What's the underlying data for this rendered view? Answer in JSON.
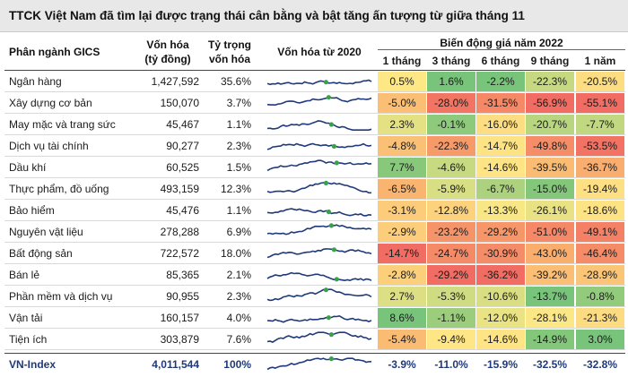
{
  "title": "TTCK Việt Nam đã tìm lại được trạng thái cân bằng và bật tăng ấn tượng từ giữa tháng 11",
  "headers": {
    "sector": "Phân ngành GICS",
    "cap_line1": "Vốn hóa",
    "cap_line2": "(tỷ đồng)",
    "weight_line1": "Tỷ trọng",
    "weight_line2": "vốn hóa",
    "spark": "Vốn hóa từ 2020",
    "group": "Biến động giá năm 2022",
    "periods": [
      "1 tháng",
      "3 tháng",
      "6 tháng",
      "9 tháng",
      "1 năm"
    ]
  },
  "colors": {
    "line": "#1f3a7a",
    "marker": "#3aa14a",
    "total_text": "#1f3a7a"
  },
  "chart_data": {
    "type": "table",
    "columns": [
      "Phân ngành GICS",
      "Vốn hóa (tỷ đồng)",
      "Tỷ trọng vốn hóa",
      "1 tháng",
      "3 tháng",
      "6 tháng",
      "9 tháng",
      "1 năm"
    ],
    "rows": [
      {
        "name": "Ngân hàng",
        "cap": "1,427,592",
        "weight": "35.6%",
        "changes": [
          "0.5%",
          "1.6%",
          "-2.2%",
          "-22.3%",
          "-20.5%"
        ],
        "values": [
          0.5,
          1.6,
          -2.2,
          -22.3,
          -20.5
        ]
      },
      {
        "name": "Xây dựng cơ bản",
        "cap": "150,070",
        "weight": "3.7%",
        "changes": [
          "-5.0%",
          "-28.0%",
          "-31.5%",
          "-56.9%",
          "-55.1%"
        ],
        "values": [
          -5.0,
          -28.0,
          -31.5,
          -56.9,
          -55.1
        ]
      },
      {
        "name": "May mặc và trang sức",
        "cap": "45,467",
        "weight": "1.1%",
        "changes": [
          "2.3%",
          "-0.1%",
          "-16.0%",
          "-20.7%",
          "-7.7%"
        ],
        "values": [
          2.3,
          -0.1,
          -16.0,
          -20.7,
          -7.7
        ]
      },
      {
        "name": "Dịch vụ tài chính",
        "cap": "90,277",
        "weight": "2.3%",
        "changes": [
          "-4.8%",
          "-22.3%",
          "-14.7%",
          "-49.8%",
          "-53.5%"
        ],
        "values": [
          -4.8,
          -22.3,
          -14.7,
          -49.8,
          -53.5
        ]
      },
      {
        "name": "Dầu khí",
        "cap": "60,525",
        "weight": "1.5%",
        "changes": [
          "7.7%",
          "-4.6%",
          "-14.6%",
          "-39.5%",
          "-36.7%"
        ],
        "values": [
          7.7,
          -4.6,
          -14.6,
          -39.5,
          -36.7
        ]
      },
      {
        "name": "Thực phẩm, đồ uống",
        "cap": "493,159",
        "weight": "12.3%",
        "changes": [
          "-6.5%",
          "-5.9%",
          "-6.7%",
          "-15.0%",
          "-19.4%"
        ],
        "values": [
          -6.5,
          -5.9,
          -6.7,
          -15.0,
          -19.4
        ]
      },
      {
        "name": "Bảo hiểm",
        "cap": "45,476",
        "weight": "1.1%",
        "changes": [
          "-3.1%",
          "-12.8%",
          "-13.3%",
          "-26.1%",
          "-18.6%"
        ],
        "values": [
          -3.1,
          -12.8,
          -13.3,
          -26.1,
          -18.6
        ]
      },
      {
        "name": "Nguyên vật liệu",
        "cap": "278,288",
        "weight": "6.9%",
        "changes": [
          "-2.9%",
          "-23.2%",
          "-29.2%",
          "-51.0%",
          "-49.1%"
        ],
        "values": [
          -2.9,
          -23.2,
          -29.2,
          -51.0,
          -49.1
        ]
      },
      {
        "name": "Bất động sản",
        "cap": "722,572",
        "weight": "18.0%",
        "changes": [
          "-14.7%",
          "-24.7%",
          "-30.9%",
          "-43.0%",
          "-46.4%"
        ],
        "values": [
          -14.7,
          -24.7,
          -30.9,
          -43.0,
          -46.4
        ]
      },
      {
        "name": "Bán lẻ",
        "cap": "85,365",
        "weight": "2.1%",
        "changes": [
          "-2.8%",
          "-29.2%",
          "-36.2%",
          "-39.2%",
          "-28.9%"
        ],
        "values": [
          -2.8,
          -29.2,
          -36.2,
          -39.2,
          -28.9
        ]
      },
      {
        "name": "Phần mềm và dịch vụ",
        "cap": "90,955",
        "weight": "2.3%",
        "changes": [
          "2.7%",
          "-5.3%",
          "-10.6%",
          "-13.7%",
          "-0.8%"
        ],
        "values": [
          2.7,
          -5.3,
          -10.6,
          -13.7,
          -0.8
        ]
      },
      {
        "name": "Vận tải",
        "cap": "160,157",
        "weight": "4.0%",
        "changes": [
          "8.6%",
          "-1.1%",
          "-12.0%",
          "-28.1%",
          "-21.3%"
        ],
        "values": [
          8.6,
          -1.1,
          -12.0,
          -28.1,
          -21.3
        ]
      },
      {
        "name": "Tiện ích",
        "cap": "303,879",
        "weight": "7.6%",
        "changes": [
          "-5.4%",
          "-9.4%",
          "-14.6%",
          "-14.9%",
          "3.0%"
        ],
        "values": [
          -5.4,
          -9.4,
          -14.6,
          -14.9,
          3.0
        ]
      }
    ],
    "total": {
      "name": "VN-Index",
      "cap": "4,011,544",
      "weight": "100%",
      "changes": [
        "-3.9%",
        "-11.0%",
        "-15.9%",
        "-32.5%",
        "-32.8%"
      ],
      "values": [
        -3.9,
        -11.0,
        -15.9,
        -32.5,
        -32.8
      ]
    }
  }
}
